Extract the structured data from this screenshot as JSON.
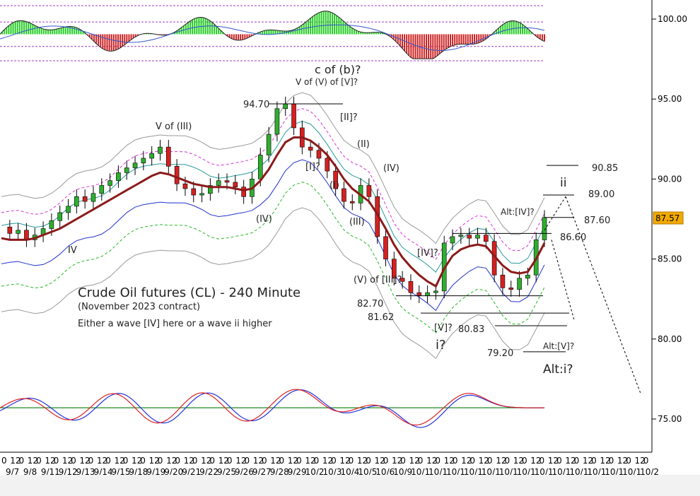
{
  "chart_data": {
    "type": "line",
    "title": "Crude Oil futures (CL) - 240 Minute",
    "subtitle": "(November 2023 contract)",
    "note": "Either a wave [IV] here or a wave ii higher",
    "y_axis": {
      "ticks": [
        "100.00",
        "95.00",
        "90.00",
        "85.00",
        "80.00",
        "75.00"
      ],
      "ylim": [
        73.5,
        101.0
      ]
    },
    "x_axis": {
      "hour_ticks": [
        "0",
        "12",
        "0",
        "12",
        "0",
        "12",
        "0",
        "12",
        "0",
        "12",
        "0",
        "12",
        "0",
        "12",
        "0",
        "12",
        "0",
        "12",
        "0",
        "12",
        "0",
        "12",
        "0",
        "12",
        "0",
        "12",
        "0",
        "12",
        "0",
        "12",
        "0",
        "12",
        "0",
        "12",
        "0",
        "12",
        "0",
        "12",
        "0",
        "12",
        "0",
        "12",
        "0",
        "12",
        "0",
        "12",
        "0",
        "12",
        "0",
        "12",
        "0",
        "12",
        "0",
        "12",
        "0",
        "12",
        "0",
        "12",
        "0",
        "12",
        "0",
        "12",
        "0",
        "12",
        "0",
        "12",
        "0",
        "12",
        "0",
        "12",
        "0",
        "12",
        "0",
        "12",
        "0"
      ],
      "date_ticks": [
        "9/7",
        "9/8",
        "9/11",
        "9/12",
        "9/13",
        "9/14",
        "9/15",
        "9/18",
        "9/19",
        "9/20",
        "9/21",
        "9/22",
        "9/25",
        "9/26",
        "9/27",
        "9/28",
        "9/29",
        "10/2",
        "10/3",
        "10/4",
        "10/5",
        "10/6",
        "10/9",
        "10/1",
        "10/1",
        "10/1",
        "10/1",
        "10/1",
        "10/1",
        "10/1",
        "10/1",
        "10/1",
        "10/1",
        "10/1",
        "10/1",
        "10/1",
        "10/2"
      ]
    },
    "series": [
      {
        "values": [
          87.0,
          86.6,
          86.8,
          86.2,
          86.5,
          86.9,
          87.4,
          87.9,
          88.3,
          88.9,
          88.6,
          89.1,
          89.6,
          89.9,
          90.4,
          90.7,
          91.0,
          91.3,
          91.6,
          92.0,
          90.8,
          89.7,
          89.4,
          89.0,
          89.1,
          89.6,
          89.9,
          89.8,
          89.5,
          88.9,
          90.0,
          91.5,
          92.8,
          94.4,
          94.7,
          93.2,
          92.0,
          91.8,
          91.3,
          90.5,
          89.4,
          88.6,
          88.5,
          89.6,
          88.9,
          86.4,
          85.0,
          83.8,
          83.6,
          82.9,
          82.7,
          82.9,
          83.0,
          86.0,
          86.4,
          86.5,
          86.3,
          86.5,
          86.1,
          84.0,
          83.2,
          83.1,
          83.8,
          84.0,
          86.2,
          87.6
        ]
      },
      {
        "values": [
          86.3,
          86.2,
          86.2,
          86.2,
          86.3,
          86.5,
          86.7,
          86.9,
          87.2,
          87.5,
          87.8,
          88.1,
          88.4,
          88.7,
          89.0,
          89.3,
          89.6,
          89.9,
          90.2,
          90.4,
          90.3,
          90.1,
          89.9,
          89.7,
          89.6,
          89.5,
          89.5,
          89.5,
          89.4,
          89.3,
          89.4,
          89.9,
          90.6,
          91.5,
          92.3,
          92.6,
          92.6,
          92.4,
          92.0,
          91.5,
          90.8,
          90.0,
          89.4,
          89.0,
          88.6,
          87.8,
          86.9,
          85.9,
          85.1,
          84.5,
          84.0,
          83.6,
          83.3,
          84.4,
          85.2,
          85.6,
          85.8,
          85.9,
          85.8,
          85.2,
          84.6,
          84.2,
          84.1,
          84.2,
          85.0,
          86.0
        ]
      }
    ],
    "oscillator_top": {
      "range": [
        97.5,
        100.3
      ],
      "levels": [
        100.3,
        99.5,
        98.3,
        97.6
      ]
    },
    "oscillator_bottom": {
      "signal_level": 75.7
    },
    "price_label": "87.57",
    "annotations": {
      "c_of_b": "c of (b)?",
      "v_of_v": "V of (V) of [V]?",
      "v_of_iii": "V of (III)",
      "p9470": "94.70",
      "w2q": "[II]?",
      "w1q": "[I]?",
      "wI": "(I)",
      "wII": "(II)",
      "wIII": "(III)",
      "wIV_a": "(IV)",
      "wIV_b": "(IV)",
      "iv_roman": "IV",
      "w_iv_q": "[IV]?",
      "v_of_iii_q": "(V) of [III]?",
      "p8270": "82.70",
      "p8162": "81.62",
      "w_v_q": "[V]?",
      "p8083": "80.83",
      "i_q": "i?",
      "p7920": "79.20",
      "alt_v": "Alt:[V]?",
      "alt_i": "Alt:i?",
      "alt_iv": "Alt:[IV]?",
      "ii": "ii",
      "p9085": "90.85",
      "p8900": "89.00",
      "p8760": "87.60",
      "p8660": "86.60"
    }
  }
}
